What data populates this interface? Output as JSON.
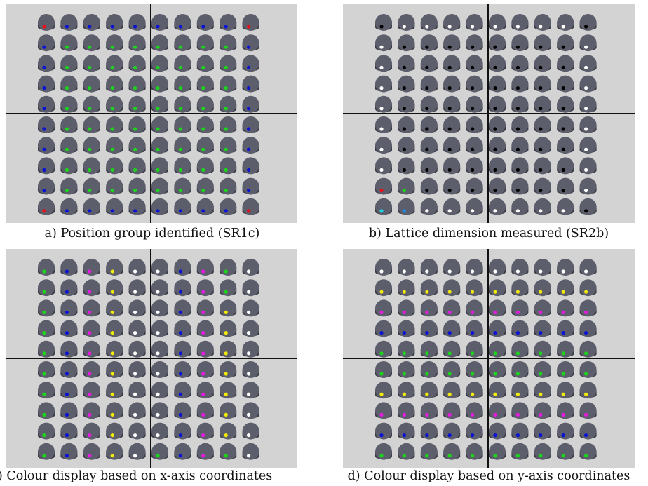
{
  "panels": [
    {
      "caption": "a) Position group identified (SR1c)",
      "grid": [
        [
          "red",
          "blue",
          "blue",
          "blue",
          "blue",
          "blue",
          "blue",
          "blue",
          "blue",
          "red"
        ],
        [
          "blue",
          "green",
          "green",
          "green",
          "green",
          "green",
          "green",
          "green",
          "green",
          "blue"
        ],
        [
          "blue",
          "green",
          "green",
          "green",
          "green",
          "green",
          "green",
          "green",
          "green",
          "blue"
        ],
        [
          "blue",
          "green",
          "green",
          "green",
          "green",
          "green",
          "green",
          "green",
          "green",
          "blue"
        ],
        [
          "blue",
          "green",
          "green",
          "green",
          "green",
          "green",
          "green",
          "green",
          "green",
          "blue"
        ],
        [
          "blue",
          "green",
          "green",
          "green",
          "green",
          "green",
          "green",
          "green",
          "green",
          "blue"
        ],
        [
          "blue",
          "green",
          "green",
          "green",
          "green",
          "green",
          "green",
          "green",
          "green",
          "blue"
        ],
        [
          "blue",
          "green",
          "green",
          "green",
          "green",
          "green",
          "green",
          "green",
          "green",
          "blue"
        ],
        [
          "blue",
          "green",
          "green",
          "green",
          "green",
          "green",
          "green",
          "green",
          "green",
          "blue"
        ],
        [
          "red",
          "blue",
          "blue",
          "blue",
          "blue",
          "blue",
          "blue",
          "blue",
          "blue",
          "red"
        ]
      ]
    },
    {
      "caption": "b) Lattice dimension measured (SR2b)",
      "grid": [
        [
          "black",
          "white",
          "white",
          "white",
          "white",
          "white",
          "white",
          "white",
          "white",
          "black"
        ],
        [
          "white",
          "black",
          "black",
          "black",
          "black",
          "black",
          "black",
          "black",
          "black",
          "white"
        ],
        [
          "white",
          "black",
          "black",
          "black",
          "black",
          "black",
          "black",
          "black",
          "black",
          "white"
        ],
        [
          "white",
          "black",
          "black",
          "black",
          "black",
          "black",
          "black",
          "black",
          "black",
          "white"
        ],
        [
          "white",
          "black",
          "black",
          "black",
          "black",
          "black",
          "black",
          "black",
          "black",
          "white"
        ],
        [
          "white",
          "black",
          "black",
          "black",
          "black",
          "black",
          "black",
          "black",
          "black",
          "white"
        ],
        [
          "white",
          "black",
          "black",
          "black",
          "black",
          "black",
          "black",
          "black",
          "black",
          "white"
        ],
        [
          "white",
          "black",
          "black",
          "black",
          "black",
          "black",
          "black",
          "black",
          "black",
          "white"
        ],
        [
          "red",
          "green",
          "black",
          "black",
          "black",
          "black",
          "black",
          "black",
          "black",
          "white"
        ],
        [
          "cyan",
          "skyblue",
          "white",
          "white",
          "white",
          "white",
          "white",
          "white",
          "white",
          "black"
        ]
      ]
    },
    {
      "caption": ") Colour display based on x-axis coordinates",
      "grid": [
        [
          "green",
          "blue",
          "magenta",
          "yellow",
          "white",
          "white",
          "blue",
          "magenta",
          "green",
          "white"
        ],
        [
          "green",
          "blue",
          "magenta",
          "yellow",
          "white",
          "white",
          "blue",
          "magenta",
          "green",
          "white"
        ],
        [
          "green",
          "blue",
          "magenta",
          "yellow",
          "white",
          "white",
          "blue",
          "magenta",
          "yellow",
          "white"
        ],
        [
          "green",
          "blue",
          "magenta",
          "yellow",
          "white",
          "white",
          "blue",
          "magenta",
          "yellow",
          "white"
        ],
        [
          "green",
          "blue",
          "magenta",
          "yellow",
          "white",
          "white",
          "blue",
          "magenta",
          "yellow",
          "white"
        ],
        [
          "green",
          "blue",
          "magenta",
          "yellow",
          "white",
          "white",
          "blue",
          "magenta",
          "yellow",
          "white"
        ],
        [
          "green",
          "blue",
          "magenta",
          "yellow",
          "white",
          "white",
          "blue",
          "magenta",
          "yellow",
          "white"
        ],
        [
          "green",
          "blue",
          "magenta",
          "yellow",
          "white",
          "white",
          "blue",
          "magenta",
          "yellow",
          "white"
        ],
        [
          "green",
          "blue",
          "magenta",
          "yellow",
          "white",
          "white",
          "blue",
          "magenta",
          "yellow",
          "white"
        ],
        [
          "green",
          "blue",
          "magenta",
          "yellow",
          "white",
          "green",
          "blue",
          "magenta",
          "green",
          "white"
        ]
      ]
    },
    {
      "caption": "d) Colour display based on y-axis coordinates",
      "grid": [
        [
          "white",
          "white",
          "white",
          "white",
          "white",
          "white",
          "white",
          "white",
          "white",
          "white"
        ],
        [
          "yellow",
          "yellow",
          "yellow",
          "yellow",
          "yellow",
          "yellow",
          "yellow",
          "yellow",
          "yellow",
          "yellow"
        ],
        [
          "magenta",
          "magenta",
          "magenta",
          "magenta",
          "magenta",
          "magenta",
          "magenta",
          "magenta",
          "magenta",
          "magenta"
        ],
        [
          "blue",
          "blue",
          "blue",
          "blue",
          "blue",
          "blue",
          "blue",
          "blue",
          "blue",
          "blue"
        ],
        [
          "green",
          "green",
          "green",
          "green",
          "green",
          "green",
          "green",
          "green",
          "green",
          "green"
        ],
        [
          "green",
          "green",
          "green",
          "green",
          "green",
          "green",
          "green",
          "green",
          "green",
          "green"
        ],
        [
          "yellow",
          "yellow",
          "yellow",
          "yellow",
          "yellow",
          "yellow",
          "yellow",
          "yellow",
          "yellow",
          "yellow"
        ],
        [
          "magenta",
          "magenta",
          "magenta",
          "magenta",
          "magenta",
          "magenta",
          "magenta",
          "magenta",
          "magenta",
          "magenta"
        ],
        [
          "blue",
          "blue",
          "blue",
          "blue",
          "blue",
          "blue",
          "blue",
          "blue",
          "blue",
          "blue"
        ],
        [
          "green",
          "green",
          "green",
          "green",
          "green",
          "green",
          "green",
          "green",
          "green",
          "green"
        ]
      ]
    }
  ],
  "colors": {
    "background": "#d3d3d3",
    "robot_body": "#5d5e6b",
    "robot_shadow": "#3b3c46",
    "axis_line": "#111111",
    "red": "#e8101a",
    "blue": "#0a12d6",
    "green": "#19d619",
    "black": "#000000",
    "white": "#ffffff",
    "magenta": "#e819e3",
    "yellow": "#f2ea08",
    "cyan": "#1ad8e6",
    "skyblue": "#1a8ee6"
  }
}
